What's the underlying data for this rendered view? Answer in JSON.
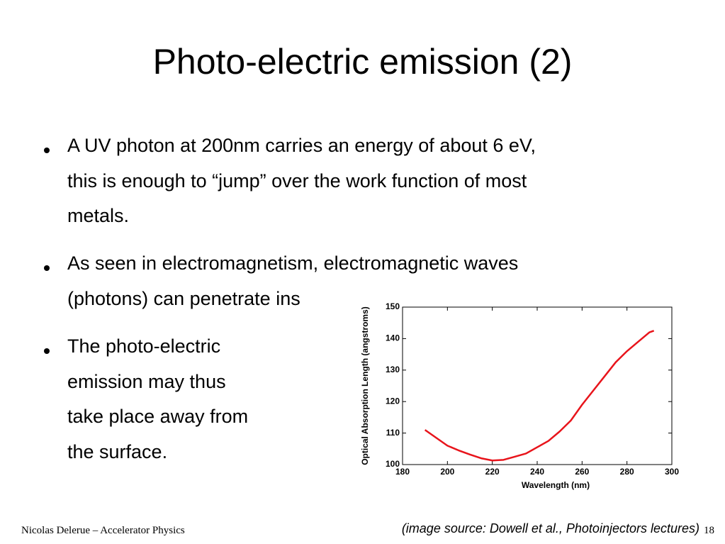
{
  "slide": {
    "title": "Photo-electric emission (2)",
    "bullets": [
      [
        "A UV photon at 200nm carries an energy of about 6 eV,",
        "this is enough to “jump” over the work function of most",
        "metals."
      ],
      [
        "As seen in electromagnetism, electromagnetic waves",
        "(photons) can penetrate ins"
      ],
      [
        "The photo-electric",
        "emission may thus",
        "take place away from",
        "the surface."
      ]
    ],
    "image_source": "(image source: Dowell et al., Photoinjectors lectures)",
    "footer": "Nicolas Delerue – Accelerator Physics",
    "page_number": "18"
  },
  "chart_data": {
    "type": "line",
    "x_label": "Wavelength (nm)",
    "y_label": "Optical Absorption Length (angstroms)",
    "x": [
      190,
      195,
      200,
      205,
      210,
      215,
      220,
      225,
      230,
      235,
      240,
      245,
      250,
      255,
      260,
      265,
      270,
      275,
      280,
      285,
      290,
      292
    ],
    "values": [
      111,
      108.5,
      106,
      104.5,
      103.2,
      102,
      101.3,
      101.5,
      102.5,
      103.5,
      105.5,
      107.5,
      110.5,
      114,
      119,
      123.5,
      128,
      132.5,
      136,
      139,
      142,
      142.5
    ],
    "color": "#e8141b",
    "xlim": [
      180,
      300
    ],
    "xticks": [
      180,
      200,
      220,
      240,
      260,
      280,
      300
    ],
    "ylim": [
      100,
      150
    ],
    "yticks": [
      100,
      110,
      120,
      130,
      140,
      150
    ],
    "grid": false
  }
}
